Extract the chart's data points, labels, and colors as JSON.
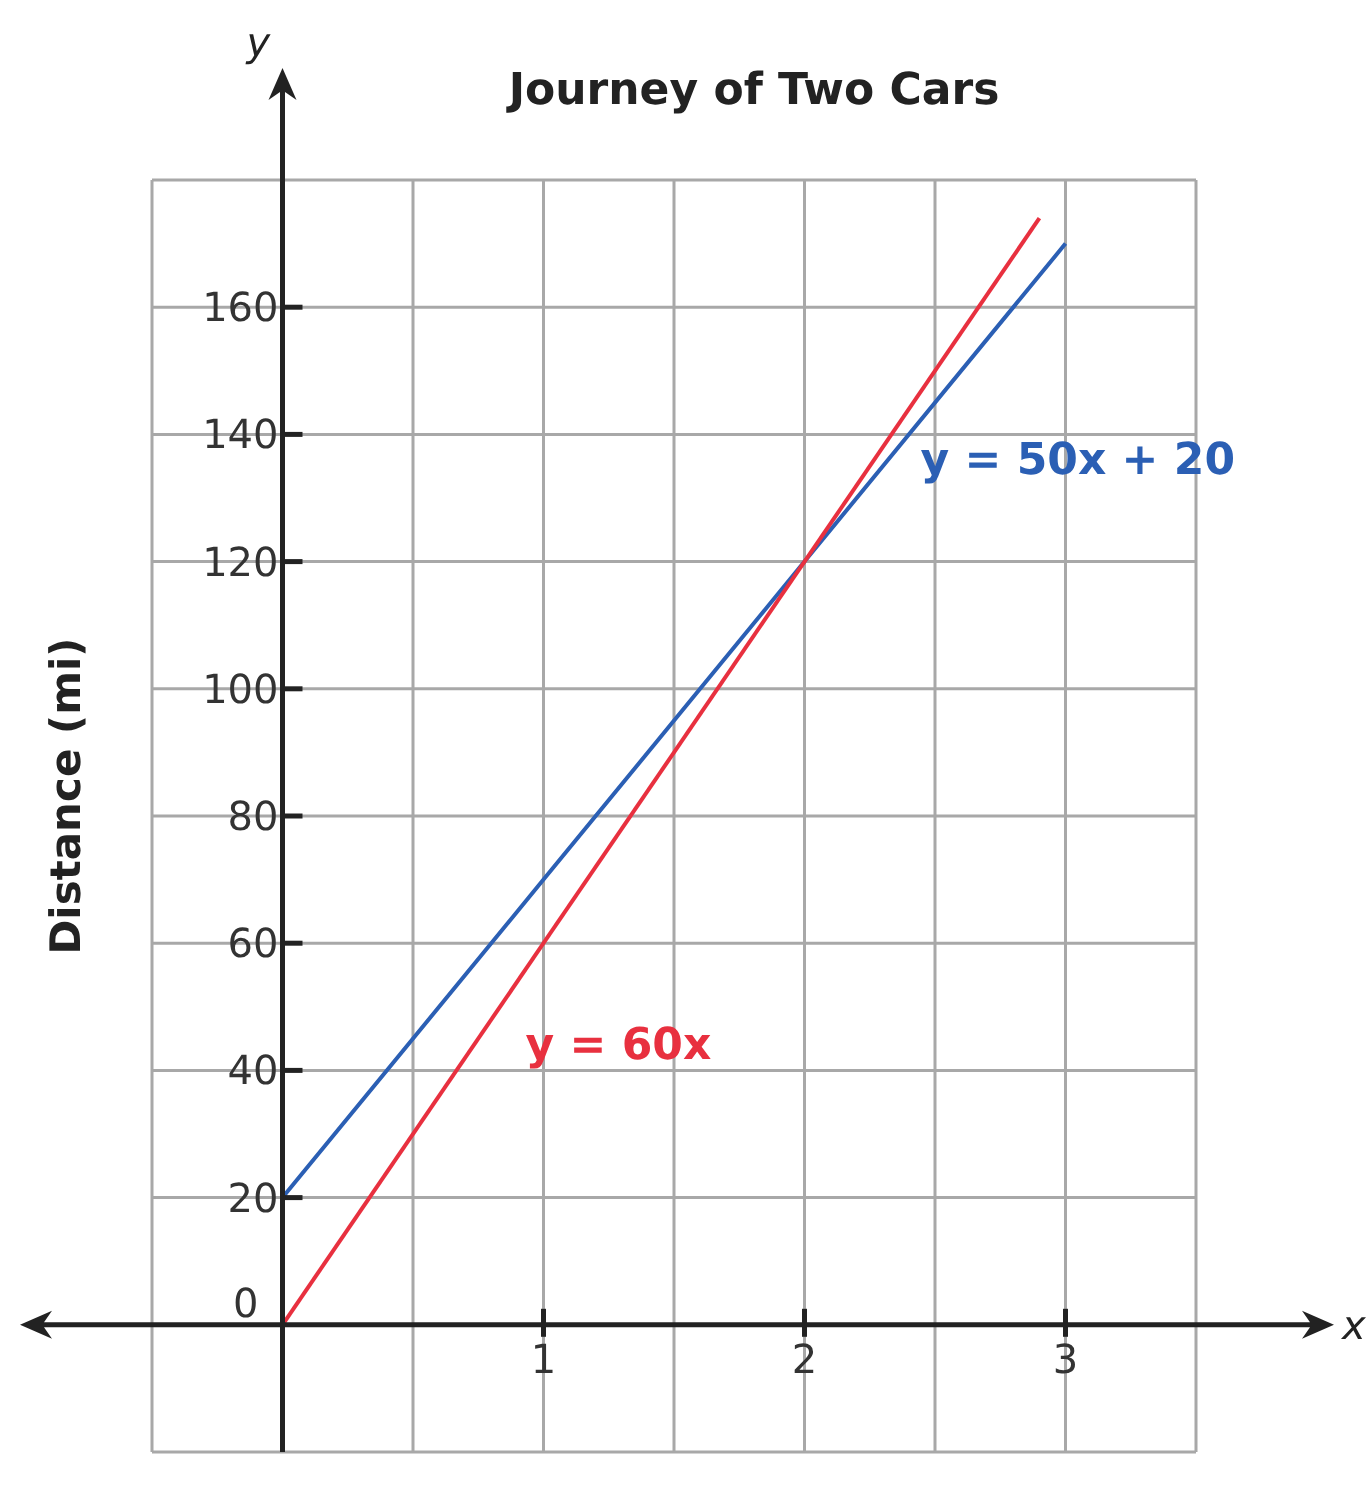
{
  "chart_data": {
    "type": "line",
    "title": "Journey of Two Cars",
    "xlabel": "x",
    "ylabel": "Distance (mi)",
    "annotations": [
      "y"
    ],
    "xlim": [
      -0.5,
      3.5
    ],
    "ylim": [
      -20,
      180
    ],
    "xticks": [
      {
        "value": -0.5,
        "label": null
      },
      {
        "value": 0,
        "label": null
      },
      {
        "value": 0.5,
        "label": null
      },
      1,
      {
        "value": 1.5,
        "label": null
      },
      2,
      {
        "value": 2.5,
        "label": null
      },
      3,
      {
        "value": 3.5,
        "label": null
      }
    ],
    "yticks": [
      {
        "value": -20,
        "label": null
      },
      0,
      20,
      40,
      60,
      80,
      100,
      120,
      140,
      160,
      {
        "value": 180,
        "label": null
      }
    ],
    "grid": true,
    "marker": "none",
    "series": [
      {
        "name": "y = 50x + 20",
        "color": "#2b5fb4",
        "x": [
          0,
          1,
          2,
          3
        ],
        "values": [
          20,
          70,
          120,
          170
        ]
      },
      {
        "name": "y = 60x",
        "color": "#e8303f",
        "x": [
          0,
          1,
          2,
          2.9
        ],
        "values": [
          0,
          60,
          120,
          174
        ]
      }
    ]
  }
}
